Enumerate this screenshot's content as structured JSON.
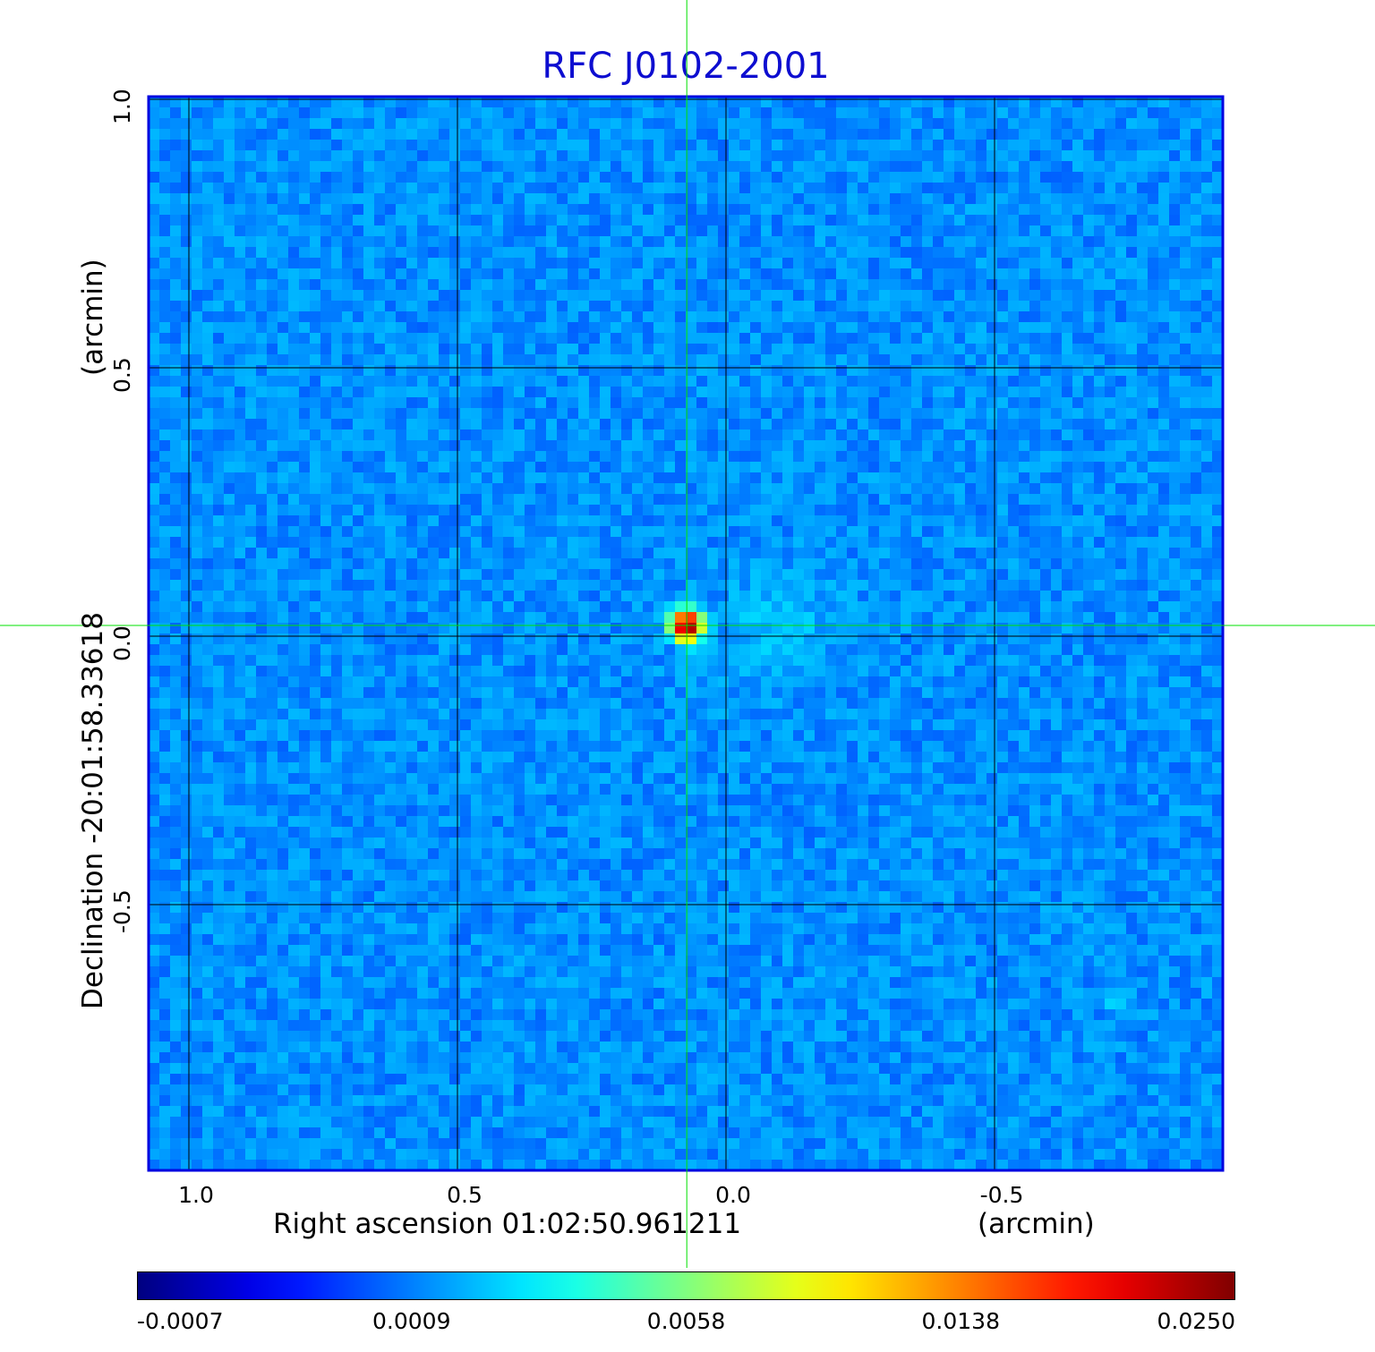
{
  "chart_data": {
    "type": "heatmap",
    "title": "RFC J0102-2001",
    "xlabel": "Right ascension  01:02:50.961211",
    "xunit": "(arcmin)",
    "ylabel": "Declination  -20:01:58.33618",
    "yunit": "(arcmin)",
    "x_ticks": [
      "1.0",
      "0.5",
      "0.0",
      "-0.5"
    ],
    "y_ticks": [
      "1.0",
      "0.5",
      "0.0",
      "-0.5"
    ],
    "x_tick_values": [
      1.0,
      0.5,
      0.0,
      -0.5
    ],
    "y_tick_values": [
      1.0,
      0.5,
      0.0,
      -0.5
    ],
    "xlim": [
      1.075,
      -0.925
    ],
    "ylim": [
      -0.995,
      1.005
    ],
    "grid": true,
    "colorbar": {
      "ticks": [
        "-0.0007",
        "0.0009",
        "0.0058",
        "0.0138",
        "0.0250"
      ],
      "tick_values": [
        -0.0007,
        0.0009,
        0.0058,
        0.0138,
        0.025
      ],
      "colormap": "jet",
      "colors": [
        "#00008f",
        "#0000ff",
        "#00ffff",
        "#ffff00",
        "#ff0000",
        "#800000"
      ]
    },
    "crosshair": {
      "x": 0.073,
      "y": 0.02,
      "color": "#00e000"
    },
    "peak": {
      "x": 0.073,
      "y": 0.02,
      "value": 0.025
    },
    "secondary_source": {
      "x": -0.73,
      "y": -0.67
    },
    "background_level": 0.0002
  }
}
